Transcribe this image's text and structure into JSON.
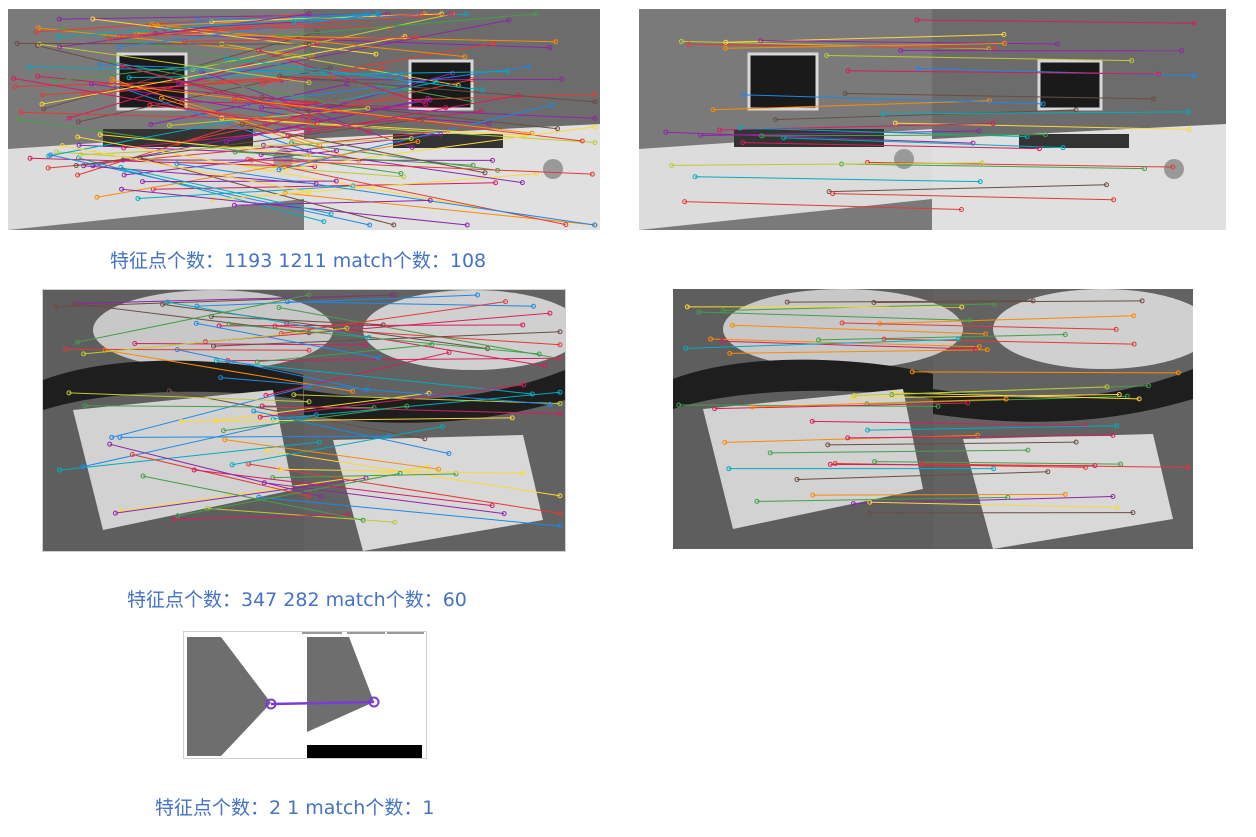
{
  "captions": {
    "office": "特征点个数：1193 1211 match个数：108",
    "scooter": "特征点个数：347 282 match个数：60",
    "synthetic": "特征点个数：2 1 match个数：1"
  },
  "colors": {
    "caption": "#4472c4",
    "match_line": "#7a3bd6"
  }
}
